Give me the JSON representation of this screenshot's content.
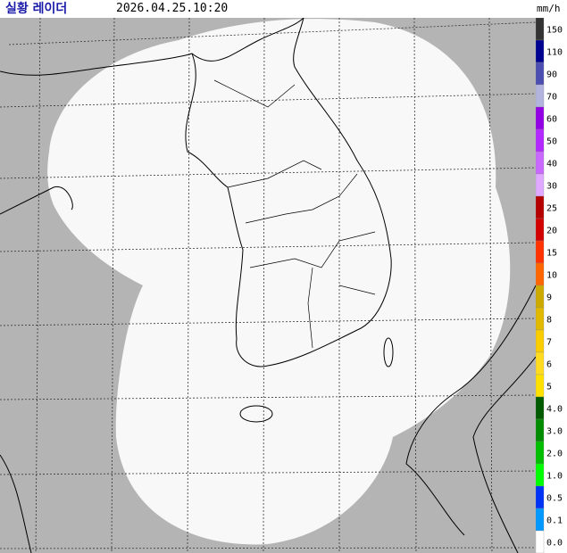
{
  "header": {
    "title": "실황 레이더",
    "time": "2026.04.25.10:20",
    "unit": "mm/h"
  },
  "legend": {
    "labels": [
      "150",
      "110",
      "90",
      "70",
      "60",
      "50",
      "40",
      "30",
      "25",
      "20",
      "15",
      "10",
      "9",
      "8",
      "7",
      "6",
      "5",
      "4.0",
      "3.0",
      "2.0",
      "1.0",
      "0.5",
      "0.1",
      "0.0"
    ],
    "colors": [
      "#333333",
      "#000390",
      "#4c4eb1",
      "#b3b4de",
      "#9300e4",
      "#b329ff",
      "#c969ff",
      "#e0a9ff",
      "#b40000",
      "#d20000",
      "#ff3200",
      "#ff6600",
      "#ccaa00",
      "#e0b900",
      "#f9cd00",
      "#ffdc1f",
      "#ffe100",
      "#005a00",
      "#008c00",
      "#00be00",
      "#00ff00",
      "#0033f5",
      "#0099ff",
      "#ffffff"
    ]
  }
}
